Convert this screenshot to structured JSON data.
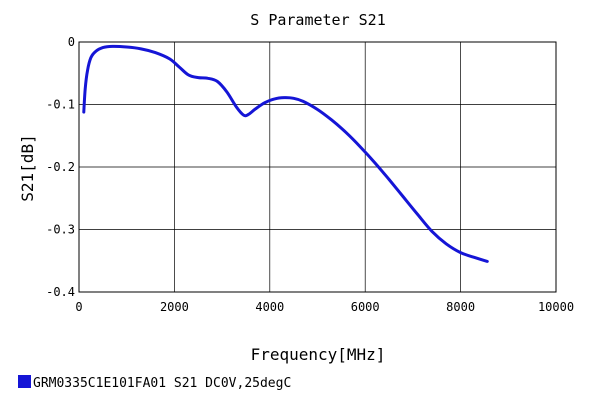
{
  "chart_data": {
    "type": "line",
    "title": "S Parameter S21",
    "xlabel": "Frequency[MHz]",
    "ylabel": "S21[dB]",
    "xlim": [
      0,
      10000
    ],
    "ylim": [
      -0.4,
      0
    ],
    "x_ticks": [
      0,
      2000,
      4000,
      6000,
      8000,
      10000
    ],
    "y_ticks": [
      0,
      -0.1,
      -0.2,
      -0.3,
      -0.4
    ],
    "y_tick_labels": [
      "0",
      "-0.1",
      "-0.2",
      "-0.3",
      "-0.4"
    ],
    "grid": true,
    "legend_position": "bottom-left",
    "series": [
      {
        "name": "GRM0335C1E101FA01 S21 DC0V,25degC",
        "color": "#1515d6",
        "x": [
          100,
          130,
          180,
          250,
          350,
          500,
          700,
          1000,
          1300,
          1600,
          1900,
          2100,
          2300,
          2500,
          2700,
          2900,
          3100,
          3300,
          3450,
          3550,
          3700,
          3900,
          4100,
          4300,
          4500,
          4700,
          5000,
          5300,
          5600,
          5900,
          6200,
          6500,
          6800,
          7100,
          7400,
          7700,
          8000,
          8300,
          8560
        ],
        "y": [
          -0.112,
          -0.075,
          -0.045,
          -0.025,
          -0.015,
          -0.009,
          -0.007,
          -0.008,
          -0.011,
          -0.017,
          -0.027,
          -0.04,
          -0.053,
          -0.057,
          -0.058,
          -0.063,
          -0.08,
          -0.104,
          -0.117,
          -0.116,
          -0.107,
          -0.097,
          -0.091,
          -0.089,
          -0.09,
          -0.095,
          -0.108,
          -0.125,
          -0.145,
          -0.168,
          -0.193,
          -0.22,
          -0.248,
          -0.276,
          -0.303,
          -0.323,
          -0.337,
          -0.345,
          -0.351
        ]
      }
    ]
  }
}
